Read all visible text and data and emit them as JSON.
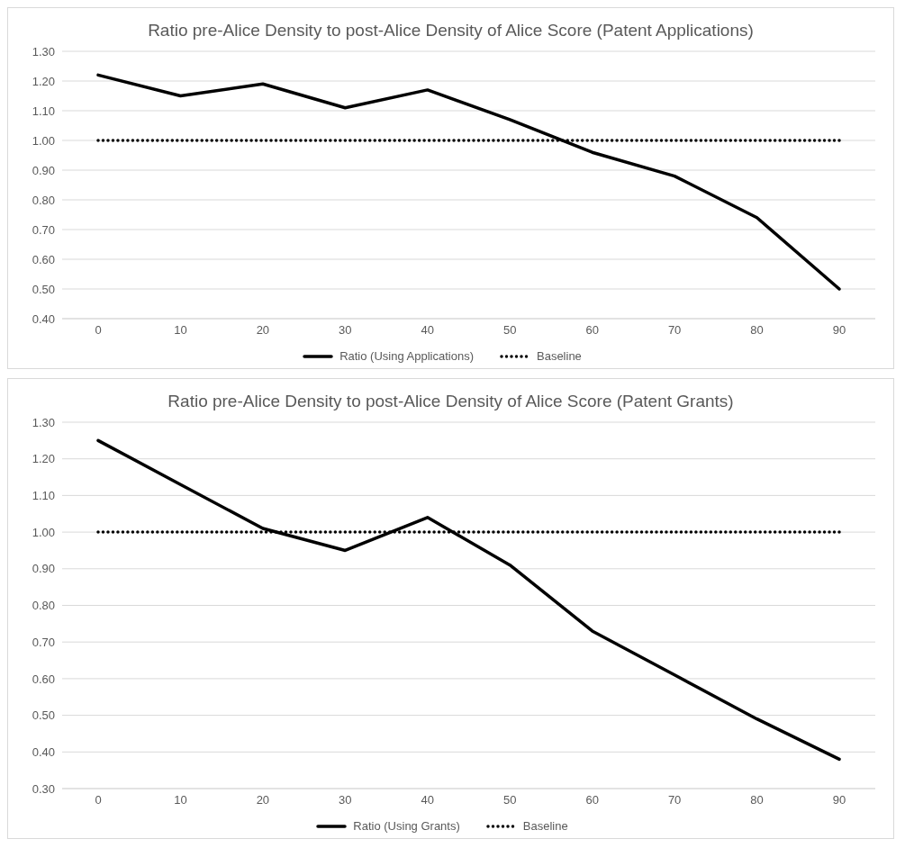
{
  "chart_data": [
    {
      "type": "line",
      "title": "Ratio pre-Alice Density to post-Alice Density of Alice Score (Patent Applications)",
      "categories": [
        "0",
        "10",
        "20",
        "30",
        "40",
        "50",
        "60",
        "70",
        "80",
        "90"
      ],
      "series": [
        {
          "name": "Ratio (Using Applications)",
          "color": "#000000",
          "line_style": "solid",
          "values": [
            1.22,
            1.15,
            1.19,
            1.11,
            1.17,
            1.07,
            0.96,
            0.88,
            0.74,
            0.5
          ]
        },
        {
          "name": "Baseline",
          "color": "#000000",
          "line_style": "dotted",
          "values": [
            1,
            1,
            1,
            1,
            1,
            1,
            1,
            1,
            1,
            1
          ]
        }
      ],
      "ylim": [
        0.4,
        1.3
      ],
      "yticks": [
        {
          "value": 0.4,
          "label": "0.40"
        },
        {
          "value": 0.5,
          "label": "0.50"
        },
        {
          "value": 0.6,
          "label": "0.60"
        },
        {
          "value": 0.7,
          "label": "0.70"
        },
        {
          "value": 0.8,
          "label": "0.80"
        },
        {
          "value": 0.9,
          "label": "0.90"
        },
        {
          "value": 1.0,
          "label": "1.00"
        },
        {
          "value": 1.1,
          "label": "1.10"
        },
        {
          "value": 1.2,
          "label": "1.20"
        },
        {
          "value": 1.3,
          "label": "1.30"
        }
      ],
      "grid": "y",
      "legend": "bottom",
      "marker": "none"
    },
    {
      "type": "line",
      "title": "Ratio pre-Alice Density to post-Alice Density of Alice Score (Patent Grants)",
      "categories": [
        "0",
        "10",
        "20",
        "30",
        "40",
        "50",
        "60",
        "70",
        "80",
        "90"
      ],
      "series": [
        {
          "name": "Ratio (Using Grants)",
          "color": "#000000",
          "line_style": "solid",
          "values": [
            1.25,
            1.13,
            1.01,
            0.95,
            1.04,
            0.91,
            0.73,
            0.61,
            0.49,
            0.38
          ]
        },
        {
          "name": "Baseline",
          "color": "#000000",
          "line_style": "dotted",
          "values": [
            1,
            1,
            1,
            1,
            1,
            1,
            1,
            1,
            1,
            1
          ]
        }
      ],
      "ylim": [
        0.3,
        1.3
      ],
      "yticks": [
        {
          "value": 0.3,
          "label": "0.30"
        },
        {
          "value": 0.4,
          "label": "0.40"
        },
        {
          "value": 0.5,
          "label": "0.50"
        },
        {
          "value": 0.6,
          "label": "0.60"
        },
        {
          "value": 0.7,
          "label": "0.70"
        },
        {
          "value": 0.8,
          "label": "0.80"
        },
        {
          "value": 0.9,
          "label": "0.90"
        },
        {
          "value": 1.0,
          "label": "1.00"
        },
        {
          "value": 1.1,
          "label": "1.10"
        },
        {
          "value": 1.2,
          "label": "1.20"
        },
        {
          "value": 1.3,
          "label": "1.30"
        }
      ],
      "grid": "y",
      "legend": "bottom",
      "marker": "none"
    }
  ]
}
